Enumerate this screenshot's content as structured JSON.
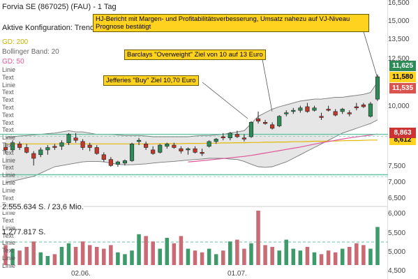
{
  "header": {
    "title": "Forvia SE (867025) (FAU) - 1 Tag",
    "config_label": "Aktive Konfiguration: Trend",
    "indicators": [
      {
        "label": "GD: 200",
        "color": "#c9b400"
      },
      {
        "label": "Bollinger Band: 20",
        "color": "#666666"
      },
      {
        "label": "GD: 50",
        "color": "#e0559a"
      }
    ]
  },
  "side_labels": [
    "Linie",
    "Text",
    "Linie",
    "Text",
    "Text",
    "Text",
    "Text",
    "Text",
    "Text",
    "Linie",
    "Text",
    "Text",
    "Linie",
    "Text",
    "Linie",
    "Linie",
    "Linie",
    "Text",
    "Text",
    "Linie",
    "Text",
    "Linie",
    "Text",
    "Linie",
    "Text",
    "Linie",
    "Linie"
  ],
  "price_axis": [
    "16,500",
    "15,000",
    "13,500",
    "12,500",
    "10,000",
    "7,500",
    "7,000",
    "6,500"
  ],
  "volume_axis": [
    "6,000",
    "5,500",
    "5,000",
    "4,500"
  ],
  "price_tags": [
    {
      "value": "11,625",
      "color": "#2e8b57"
    },
    {
      "value": "11,580",
      "color": "#ffd21f"
    },
    {
      "value": "11,535",
      "color": "#d9534f"
    },
    {
      "value": "8,863",
      "color": "#cc3333"
    },
    {
      "value": "8,612",
      "color": "#ffd21f"
    }
  ],
  "annotations": [
    {
      "text": "HJ-Bericht mit Margen- und Profitabilitätsverbesserung, Umsatz nahezu auf VJ-Niveau Prognose bestätigt"
    },
    {
      "text": "Barclays \"Overweight\" Ziel von 10 auf 13 Euro"
    },
    {
      "text": "Jefferies \"Buy\" Ziel 10,70 Euro"
    }
  ],
  "volume_info": {
    "main": "2.555.634 S. / 23,6 Mio.",
    "secondary": "1.277.817 S."
  },
  "x_axis": [
    "02.06.",
    "01.07."
  ],
  "colors": {
    "up": "#2e8b57",
    "down": "#c0392b",
    "band_fill": "#e6e6e6",
    "ma200": "#e3b800",
    "ma50": "#e0559a",
    "support": "#66c2a5"
  },
  "chart_data": {
    "type": "candlestick",
    "title": "Forvia SE (867025) (FAU) - 1 Tag",
    "ylim": [
      6.5,
      16.5
    ],
    "candles": [
      {
        "o": 8.3,
        "h": 8.5,
        "l": 8.05,
        "c": 8.2
      },
      {
        "o": 8.2,
        "h": 8.6,
        "l": 8.1,
        "c": 8.5
      },
      {
        "o": 8.45,
        "h": 8.55,
        "l": 8.2,
        "c": 8.3
      },
      {
        "o": 8.3,
        "h": 8.45,
        "l": 8.05,
        "c": 8.1
      },
      {
        "o": 8.05,
        "h": 8.15,
        "l": 7.55,
        "c": 7.85
      },
      {
        "o": 8.0,
        "h": 8.3,
        "l": 7.9,
        "c": 8.2
      },
      {
        "o": 8.2,
        "h": 8.4,
        "l": 8.0,
        "c": 8.3
      },
      {
        "o": 8.35,
        "h": 8.45,
        "l": 8.2,
        "c": 8.3
      },
      {
        "o": 8.35,
        "h": 8.6,
        "l": 8.2,
        "c": 8.5
      },
      {
        "o": 8.5,
        "h": 8.9,
        "l": 8.4,
        "c": 8.85
      },
      {
        "o": 8.7,
        "h": 8.9,
        "l": 8.5,
        "c": 8.6
      },
      {
        "o": 8.55,
        "h": 8.65,
        "l": 8.2,
        "c": 8.3
      },
      {
        "o": 8.4,
        "h": 8.5,
        "l": 8.15,
        "c": 8.3
      },
      {
        "o": 8.3,
        "h": 8.4,
        "l": 8.0,
        "c": 8.05
      },
      {
        "o": 8.0,
        "h": 8.1,
        "l": 7.7,
        "c": 7.8
      },
      {
        "o": 7.8,
        "h": 7.9,
        "l": 7.5,
        "c": 7.55
      },
      {
        "o": 7.6,
        "h": 7.75,
        "l": 7.5,
        "c": 7.7
      },
      {
        "o": 7.65,
        "h": 7.8,
        "l": 7.55,
        "c": 7.75
      },
      {
        "o": 7.75,
        "h": 8.5,
        "l": 7.7,
        "c": 8.45
      },
      {
        "o": 8.55,
        "h": 8.7,
        "l": 8.4,
        "c": 8.6
      },
      {
        "o": 8.45,
        "h": 8.55,
        "l": 8.2,
        "c": 8.3
      },
      {
        "o": 8.2,
        "h": 8.35,
        "l": 8.0,
        "c": 8.05
      },
      {
        "o": 8.1,
        "h": 8.45,
        "l": 8.05,
        "c": 8.4
      },
      {
        "o": 8.35,
        "h": 8.5,
        "l": 8.25,
        "c": 8.45
      },
      {
        "o": 8.4,
        "h": 8.5,
        "l": 8.25,
        "c": 8.3
      },
      {
        "o": 8.25,
        "h": 8.35,
        "l": 8.05,
        "c": 8.15
      },
      {
        "o": 8.2,
        "h": 8.3,
        "l": 8.0,
        "c": 8.25
      },
      {
        "o": 8.25,
        "h": 8.35,
        "l": 8.05,
        "c": 8.1
      },
      {
        "o": 8.1,
        "h": 8.25,
        "l": 7.95,
        "c": 8.05
      },
      {
        "o": 8.35,
        "h": 8.6,
        "l": 8.3,
        "c": 8.55
      },
      {
        "o": 8.55,
        "h": 8.7,
        "l": 8.45,
        "c": 8.65
      },
      {
        "o": 8.75,
        "h": 8.9,
        "l": 8.6,
        "c": 8.7
      },
      {
        "o": 8.7,
        "h": 8.95,
        "l": 8.6,
        "c": 8.9
      },
      {
        "o": 8.85,
        "h": 9.0,
        "l": 8.7,
        "c": 8.75
      },
      {
        "o": 8.7,
        "h": 8.85,
        "l": 8.55,
        "c": 8.65
      },
      {
        "o": 8.75,
        "h": 9.4,
        "l": 8.7,
        "c": 9.35
      },
      {
        "o": 9.5,
        "h": 9.8,
        "l": 9.3,
        "c": 9.4
      },
      {
        "o": 9.35,
        "h": 9.45,
        "l": 9.25,
        "c": 9.3
      },
      {
        "o": 9.25,
        "h": 9.35,
        "l": 9.05,
        "c": 9.1
      },
      {
        "o": 9.2,
        "h": 9.65,
        "l": 9.15,
        "c": 9.6
      },
      {
        "o": 9.7,
        "h": 9.85,
        "l": 9.6,
        "c": 9.75
      },
      {
        "o": 9.8,
        "h": 9.95,
        "l": 9.7,
        "c": 9.85
      },
      {
        "o": 9.85,
        "h": 10.05,
        "l": 9.75,
        "c": 9.95
      },
      {
        "o": 10.0,
        "h": 10.2,
        "l": 9.75,
        "c": 9.8
      },
      {
        "o": 9.85,
        "h": 10.05,
        "l": 9.8,
        "c": 9.95
      },
      {
        "o": 9.6,
        "h": 9.75,
        "l": 9.45,
        "c": 9.55
      },
      {
        "o": 9.9,
        "h": 10.05,
        "l": 9.8,
        "c": 9.85
      },
      {
        "o": 9.8,
        "h": 9.9,
        "l": 9.6,
        "c": 9.65
      },
      {
        "o": 9.8,
        "h": 9.95,
        "l": 9.7,
        "c": 9.9
      },
      {
        "o": 9.75,
        "h": 9.85,
        "l": 9.6,
        "c": 9.7
      },
      {
        "o": 10.0,
        "h": 10.2,
        "l": 9.85,
        "c": 9.95
      },
      {
        "o": 10.1,
        "h": 10.2,
        "l": 9.95,
        "c": 10.0
      },
      {
        "o": 9.6,
        "h": 10.25,
        "l": 9.55,
        "c": 10.15
      },
      {
        "o": 10.4,
        "h": 11.7,
        "l": 10.3,
        "c": 11.58
      }
    ],
    "volume": [
      1.1,
      0.9,
      0.8,
      1.0,
      1.3,
      0.7,
      0.5,
      0.6,
      1.0,
      1.2,
      1.0,
      1.3,
      1.1,
      1.0,
      0.9,
      1.1,
      0.7,
      0.6,
      0.8,
      1.7,
      1.6,
      1.3,
      0.9,
      1.5,
      1.2,
      1.6,
      0.9,
      0.8,
      0.7,
      0.9,
      0.6,
      0.8,
      1.3,
      1.4,
      0.9,
      1.2,
      3.0,
      1.1,
      1.0,
      0.8,
      1.4,
      0.9,
      0.8,
      1.0,
      0.7,
      0.6,
      0.8,
      0.7,
      0.9,
      1.0,
      1.2,
      1.1,
      0.9,
      2.1
    ],
    "ma50": [
      null,
      null,
      null,
      null,
      null,
      null,
      null,
      null,
      null,
      null,
      null,
      null,
      null,
      null,
      null,
      null,
      null,
      null,
      null,
      null,
      null,
      null,
      null,
      null,
      null,
      null,
      7.7,
      7.72,
      7.75,
      7.78,
      7.81,
      7.84,
      7.87,
      7.9,
      7.93,
      7.97,
      8.02,
      8.07,
      8.12,
      8.17,
      8.22,
      8.27,
      8.32,
      8.38,
      8.44,
      8.5,
      8.55,
      8.6,
      8.65,
      8.7,
      8.74,
      8.78,
      8.82,
      8.86
    ],
    "ma200": [
      8.45,
      8.45,
      8.45,
      8.45,
      8.45,
      8.45,
      8.45,
      8.45,
      8.45,
      8.45,
      8.45,
      8.45,
      8.45,
      8.45,
      8.45,
      8.45,
      8.45,
      8.45,
      8.45,
      8.45,
      8.45,
      8.45,
      8.46,
      8.46,
      8.46,
      8.46,
      8.47,
      8.47,
      8.47,
      8.48,
      8.48,
      8.49,
      8.49,
      8.5,
      8.5,
      8.51,
      8.51,
      8.52,
      8.52,
      8.53,
      8.53,
      8.54,
      8.54,
      8.55,
      8.56,
      8.56,
      8.57,
      8.57,
      8.58,
      8.59,
      8.59,
      8.6,
      8.61,
      8.61
    ],
    "bb_upper": [
      8.7,
      8.75,
      8.78,
      8.8,
      8.82,
      8.85,
      8.88,
      8.9,
      8.95,
      9.0,
      8.95,
      8.95,
      8.9,
      8.85,
      8.85,
      8.85,
      8.82,
      8.8,
      8.8,
      8.8,
      8.78,
      8.75,
      8.75,
      8.75,
      8.75,
      8.75,
      8.75,
      8.78,
      8.8,
      8.8,
      8.82,
      8.85,
      8.9,
      8.95,
      9.0,
      9.3,
      9.6,
      9.75,
      9.9,
      10.0,
      10.1,
      10.2,
      10.3,
      10.35,
      10.4,
      10.4,
      10.45,
      10.5,
      10.5,
      10.55,
      10.6,
      10.65,
      10.75,
      11.3
    ],
    "bb_lower": [
      7.0,
      7.05,
      7.1,
      7.15,
      7.2,
      7.3,
      7.4,
      7.5,
      7.55,
      7.6,
      7.65,
      7.7,
      7.72,
      7.72,
      7.7,
      7.65,
      7.6,
      7.58,
      7.58,
      7.6,
      7.62,
      7.65,
      7.68,
      7.7,
      7.72,
      7.75,
      7.78,
      7.8,
      7.82,
      7.85,
      7.85,
      7.85,
      7.82,
      7.8,
      7.72,
      7.6,
      7.5,
      7.48,
      7.5,
      7.6,
      7.7,
      7.85,
      8.0,
      8.15,
      8.3,
      8.45,
      8.6,
      8.75,
      8.9,
      9.0,
      9.1,
      9.2,
      9.3,
      9.45
    ],
    "horizontal_lines": [
      {
        "label": "Linie",
        "value": 8.85
      },
      {
        "label": "Linie",
        "value": 7.25
      }
    ]
  }
}
